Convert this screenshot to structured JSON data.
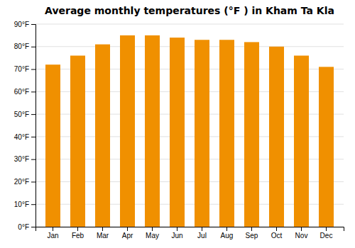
{
  "chart_data": {
    "type": "bar",
    "title": "Average monthly temperatures (°F ) in Kham Ta Kla",
    "categories": [
      "Jan",
      "Feb",
      "Mar",
      "Apr",
      "May",
      "Jun",
      "Jul",
      "Aug",
      "Sep",
      "Oct",
      "Nov",
      "Dec"
    ],
    "values": [
      72,
      76,
      81,
      85,
      85,
      84,
      83,
      83,
      82,
      80,
      76,
      71
    ],
    "color": "#F09000",
    "ylim": [
      0,
      90
    ],
    "yticks": [
      {
        "value": 0,
        "label": "0°F"
      },
      {
        "value": 10,
        "label": "10°F"
      },
      {
        "value": 20,
        "label": "20°F"
      },
      {
        "value": 30,
        "label": "30°F"
      },
      {
        "value": 40,
        "label": "40°F"
      },
      {
        "value": 50,
        "label": "50°F"
      },
      {
        "value": 60,
        "label": "60°F"
      },
      {
        "value": 70,
        "label": "70°F"
      },
      {
        "value": 80,
        "label": "80°F"
      },
      {
        "value": 90,
        "label": "90°F"
      }
    ],
    "grid": true
  }
}
